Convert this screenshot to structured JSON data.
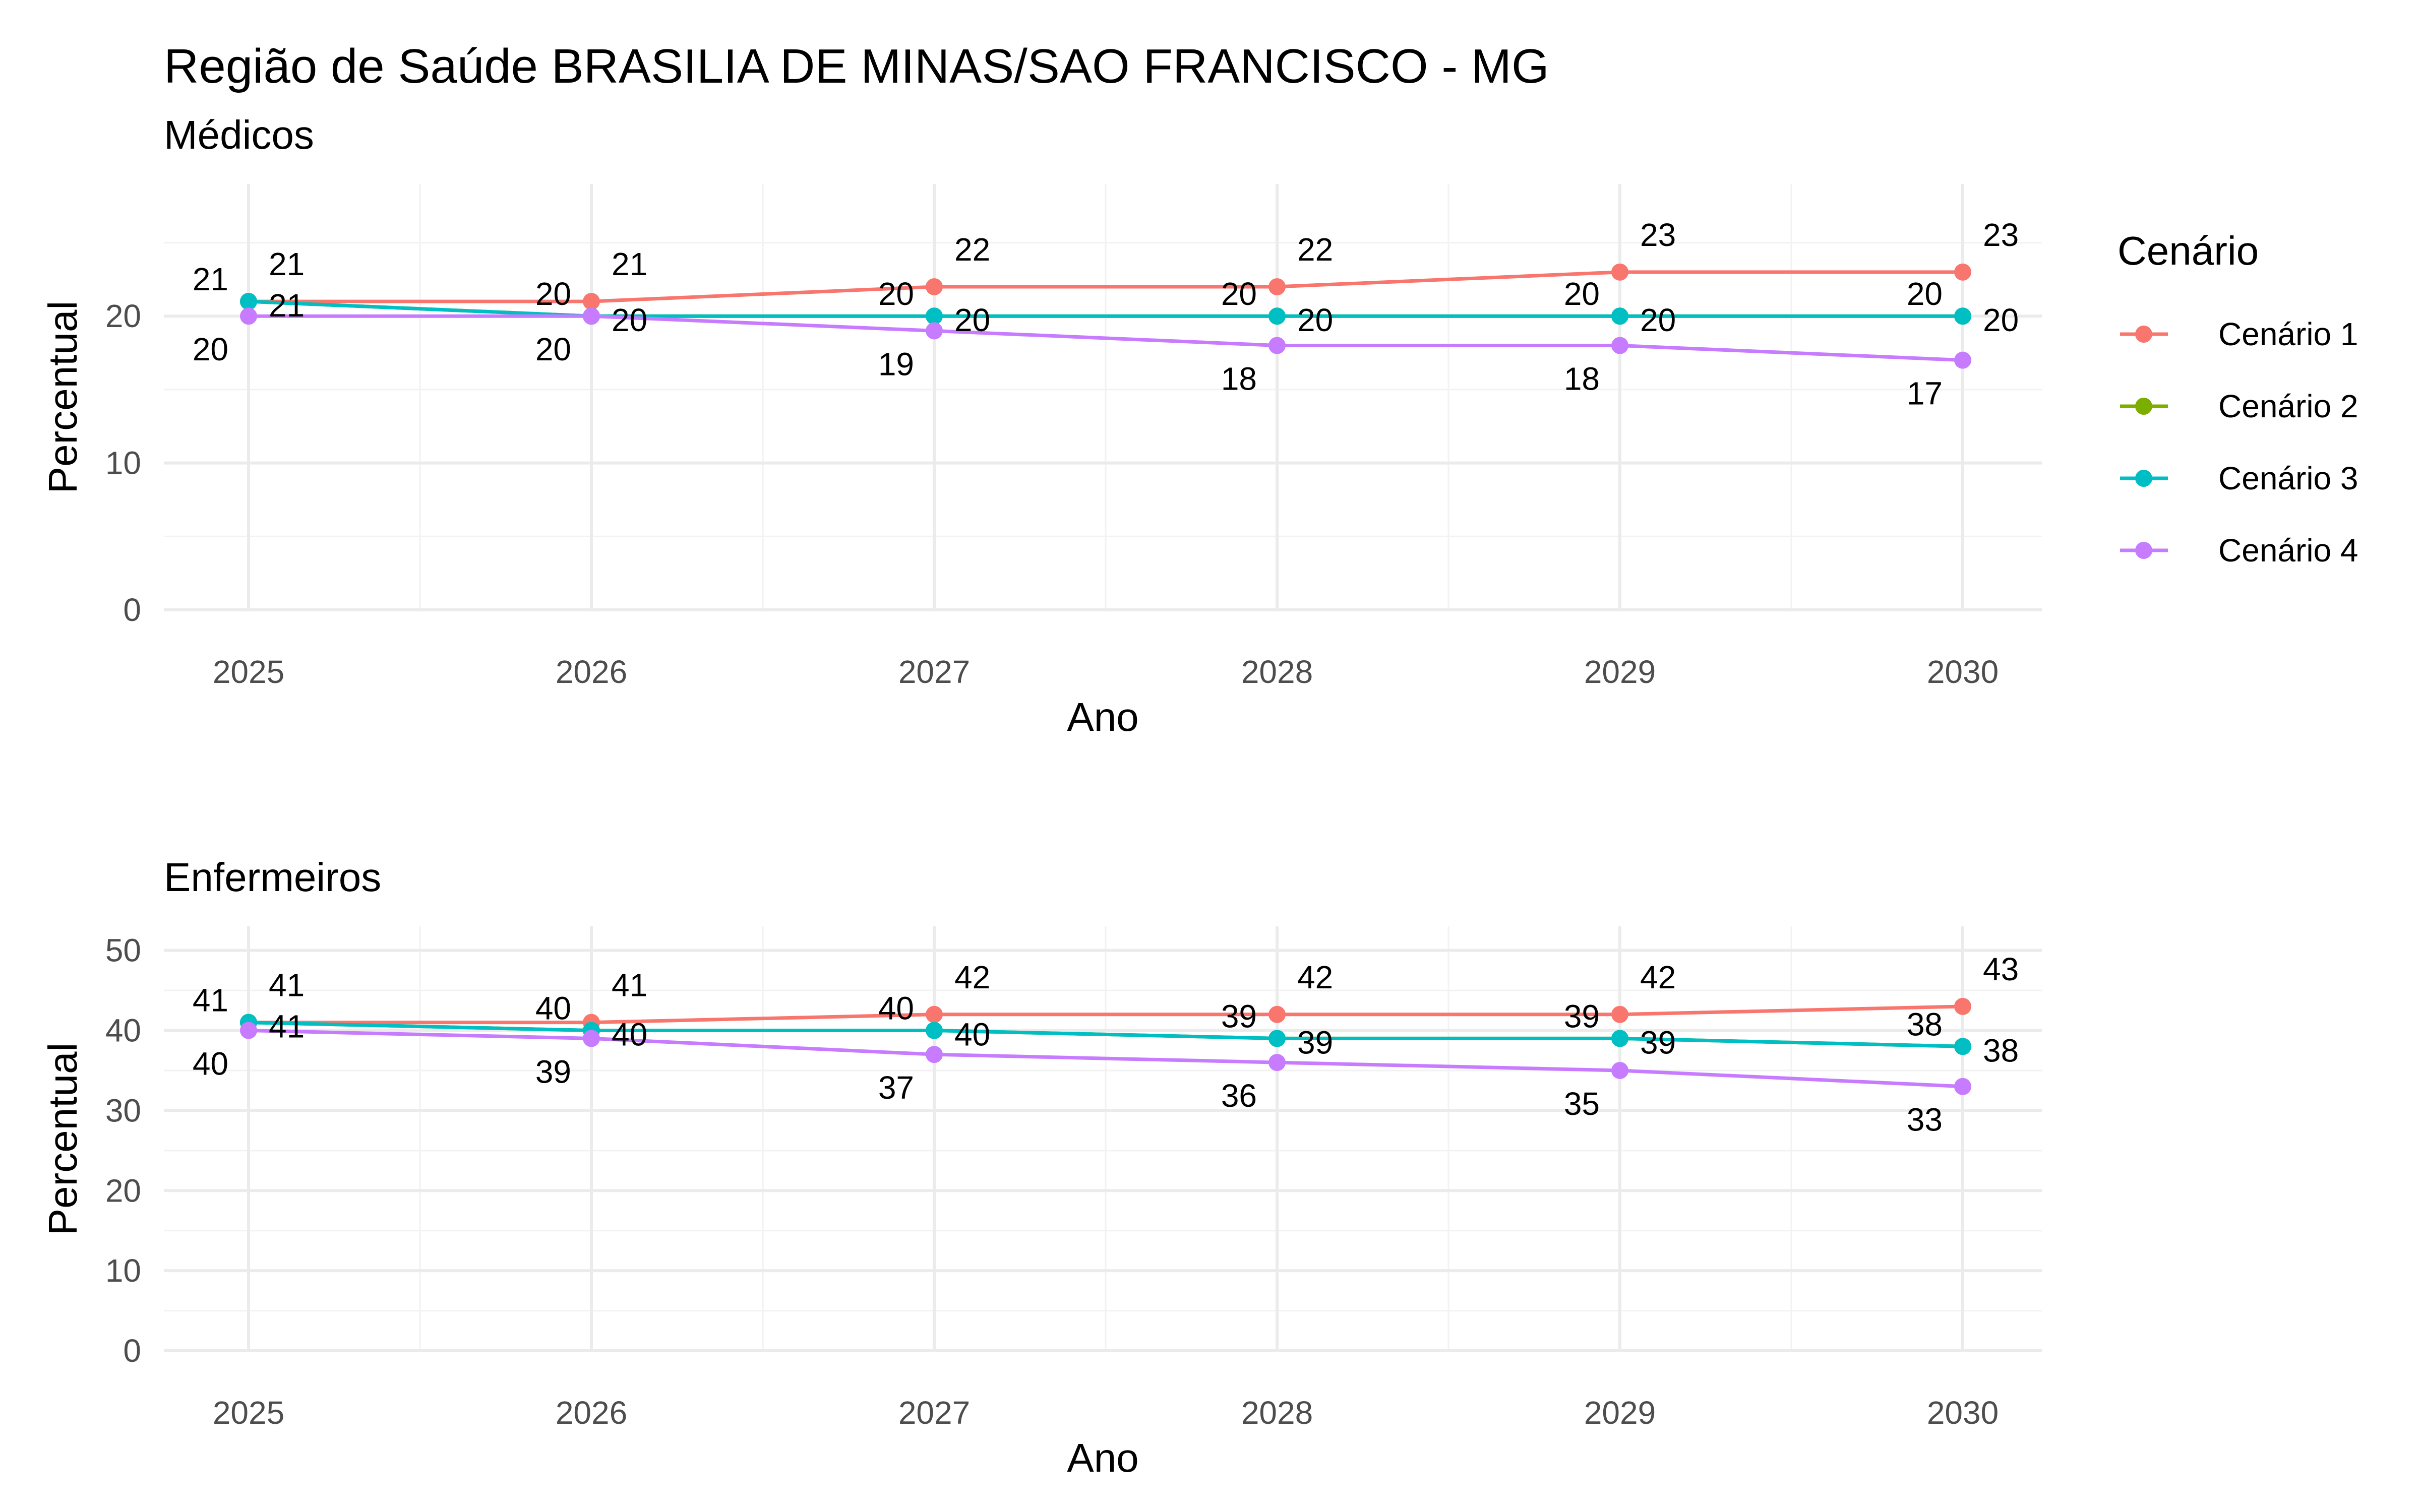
{
  "title": "Região de Saúde BRASILIA DE MINAS/SAO FRANCISCO - MG",
  "legend": {
    "title": "Cenário",
    "items": [
      {
        "label": "Cenário 1",
        "color": "#F8766D"
      },
      {
        "label": "Cenário 2",
        "color": "#7CAE00"
      },
      {
        "label": "Cenário 3",
        "color": "#00BFC4"
      },
      {
        "label": "Cenário 4",
        "color": "#C77CFF"
      }
    ]
  },
  "chart_data": [
    {
      "type": "line",
      "subtitle": "Médicos",
      "xlabel": "Ano",
      "ylabel": "Percentual",
      "x": [
        2025,
        2026,
        2027,
        2028,
        2029,
        2030
      ],
      "x_ticks": [
        "2025",
        "2026",
        "2027",
        "2028",
        "2029",
        "2030"
      ],
      "ylim": [
        0,
        29
      ],
      "y_ticks": [
        0,
        10,
        20
      ],
      "grid": true,
      "legend_position": "right",
      "series": [
        {
          "name": "Cenário 1",
          "color": "#F8766D",
          "values": [
            21,
            21,
            22,
            22,
            23,
            23
          ]
        },
        {
          "name": "Cenário 2",
          "color": "#7CAE00",
          "values": [
            21,
            20,
            20,
            20,
            20,
            20
          ]
        },
        {
          "name": "Cenário 3",
          "color": "#00BFC4",
          "values": [
            21,
            20,
            20,
            20,
            20,
            20
          ]
        },
        {
          "name": "Cenário 4",
          "color": "#C77CFF",
          "values": [
            20,
            20,
            19,
            18,
            18,
            17
          ]
        }
      ]
    },
    {
      "type": "line",
      "subtitle": "Enfermeiros",
      "xlabel": "Ano",
      "ylabel": "Percentual",
      "x": [
        2025,
        2026,
        2027,
        2028,
        2029,
        2030
      ],
      "x_ticks": [
        "2025",
        "2026",
        "2027",
        "2028",
        "2029",
        "2030"
      ],
      "ylim": [
        0,
        53
      ],
      "y_ticks": [
        0,
        10,
        20,
        30,
        40,
        50
      ],
      "grid": true,
      "legend_position": "right",
      "series": [
        {
          "name": "Cenário 1",
          "color": "#F8766D",
          "values": [
            41,
            41,
            42,
            42,
            42,
            43
          ]
        },
        {
          "name": "Cenário 2",
          "color": "#7CAE00",
          "values": [
            41,
            40,
            40,
            39,
            39,
            38
          ]
        },
        {
          "name": "Cenário 3",
          "color": "#00BFC4",
          "values": [
            41,
            40,
            40,
            39,
            39,
            38
          ]
        },
        {
          "name": "Cenário 4",
          "color": "#C77CFF",
          "values": [
            40,
            39,
            37,
            36,
            35,
            33
          ]
        }
      ]
    }
  ]
}
